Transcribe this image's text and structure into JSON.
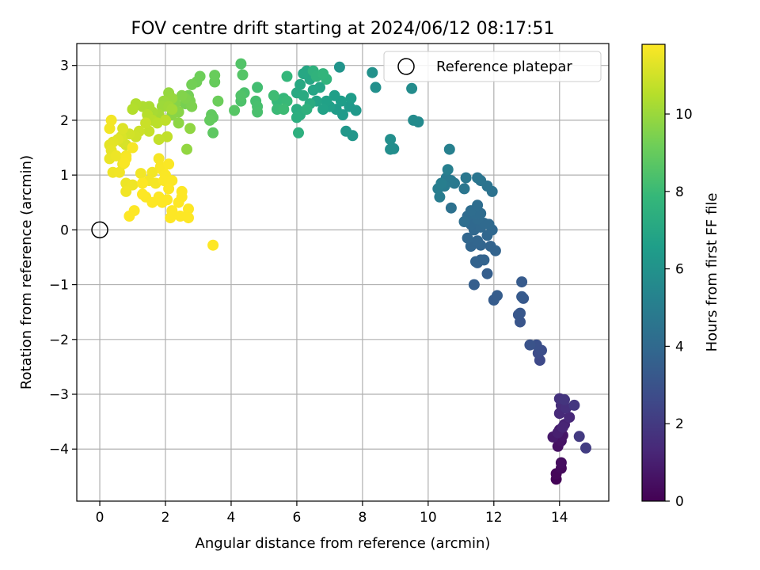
{
  "chart_data": {
    "type": "scatter",
    "title": "FOV centre drift starting at 2024/06/12 08:17:51",
    "xlabel": "Angular distance from reference (arcmin)",
    "ylabel": "Rotation from reference (arcmin)",
    "xlim": [
      -0.7,
      15.5
    ],
    "ylim": [
      -4.95,
      3.4
    ],
    "xticks": [
      0,
      2,
      4,
      6,
      8,
      10,
      12,
      14
    ],
    "yticks": [
      -4,
      -3,
      -2,
      -1,
      0,
      1,
      2,
      3
    ],
    "grid": true,
    "legend": {
      "position": "top-right",
      "entries": [
        "Reference platepar"
      ]
    },
    "reference_point": {
      "x": 0,
      "y": 0
    },
    "colorbar": {
      "label": "Hours from first FF file",
      "min": 0,
      "max": 11.8,
      "ticks": [
        0,
        2,
        4,
        6,
        8,
        10
      ],
      "colormap": [
        "#440154",
        "#482878",
        "#3e4a89",
        "#31688e",
        "#26828e",
        "#1f9e89",
        "#35b779",
        "#6ece58",
        "#b5de2b",
        "#fde725"
      ]
    },
    "series": [
      {
        "points": [
          [
            13.9,
            -4.55,
            0.1
          ],
          [
            13.9,
            -4.45,
            0.2
          ],
          [
            14.05,
            -4.35,
            0.3
          ],
          [
            14.05,
            -4.25,
            0.4
          ],
          [
            13.95,
            -3.95,
            0.5
          ],
          [
            14.05,
            -3.85,
            0.6
          ],
          [
            14.1,
            -3.75,
            0.7
          ],
          [
            13.8,
            -3.78,
            0.8
          ],
          [
            14.0,
            -3.65,
            0.9
          ],
          [
            13.95,
            -3.7,
            1.0
          ],
          [
            14.15,
            -3.55,
            1.1
          ],
          [
            14.1,
            -3.6,
            1.2
          ],
          [
            14.3,
            -3.42,
            1.3
          ],
          [
            14.0,
            -3.35,
            1.4
          ],
          [
            14.05,
            -3.2,
            1.5
          ],
          [
            14.2,
            -3.25,
            1.6
          ],
          [
            14.0,
            -3.08,
            1.7
          ],
          [
            14.15,
            -3.1,
            1.8
          ],
          [
            14.45,
            -3.2,
            1.9
          ],
          [
            14.6,
            -3.77,
            2.0
          ],
          [
            14.8,
            -3.98,
            2.1
          ],
          [
            13.4,
            -2.38,
            2.6
          ],
          [
            13.35,
            -2.25,
            2.7
          ],
          [
            13.45,
            -2.2,
            2.8
          ],
          [
            13.3,
            -2.1,
            2.9
          ],
          [
            13.1,
            -2.1,
            3.0
          ],
          [
            12.8,
            -1.68,
            3.1
          ],
          [
            12.75,
            -1.55,
            3.15
          ],
          [
            12.8,
            -1.52,
            3.2
          ],
          [
            12.9,
            -1.25,
            3.25
          ],
          [
            12.85,
            -1.22,
            3.3
          ],
          [
            12.85,
            -0.95,
            3.35
          ],
          [
            12.0,
            -1.28,
            3.4
          ],
          [
            12.1,
            -1.2,
            3.45
          ],
          [
            11.8,
            -0.8,
            3.5
          ],
          [
            11.4,
            -1.0,
            3.55
          ],
          [
            11.5,
            -0.6,
            3.6
          ],
          [
            11.6,
            -0.55,
            3.65
          ],
          [
            11.45,
            -0.58,
            3.7
          ],
          [
            11.7,
            -0.55,
            3.72
          ],
          [
            11.9,
            -0.3,
            3.75
          ],
          [
            12.05,
            -0.38,
            3.78
          ],
          [
            11.3,
            -0.3,
            3.8
          ],
          [
            11.6,
            -0.28,
            3.82
          ],
          [
            11.5,
            -0.2,
            3.85
          ],
          [
            11.2,
            -0.15,
            3.88
          ],
          [
            11.8,
            -0.1,
            3.9
          ],
          [
            11.95,
            0.0,
            3.92
          ],
          [
            11.4,
            0.0,
            3.95
          ],
          [
            11.6,
            0.05,
            3.98
          ],
          [
            11.3,
            0.1,
            4.0
          ],
          [
            11.7,
            0.12,
            4.02
          ],
          [
            11.85,
            0.1,
            4.05
          ],
          [
            11.5,
            0.2,
            4.08
          ],
          [
            11.2,
            0.25,
            4.1
          ],
          [
            11.4,
            0.3,
            4.12
          ],
          [
            11.6,
            0.3,
            4.15
          ],
          [
            11.3,
            0.35,
            4.18
          ],
          [
            11.5,
            0.45,
            4.2
          ],
          [
            11.1,
            0.15,
            4.22
          ],
          [
            10.7,
            0.4,
            4.4
          ],
          [
            11.95,
            0.7,
            4.45
          ],
          [
            11.8,
            0.8,
            4.5
          ],
          [
            11.6,
            0.9,
            4.55
          ],
          [
            11.5,
            0.95,
            4.6
          ],
          [
            11.1,
            0.75,
            4.65
          ],
          [
            11.15,
            0.95,
            4.7
          ],
          [
            10.8,
            0.85,
            4.75
          ],
          [
            10.7,
            0.9,
            4.8
          ],
          [
            10.55,
            0.95,
            4.85
          ],
          [
            10.5,
            0.8,
            4.9
          ],
          [
            10.35,
            0.6,
            4.95
          ],
          [
            10.3,
            0.75,
            5.0
          ],
          [
            10.4,
            0.85,
            5.05
          ],
          [
            10.6,
            1.1,
            5.1
          ],
          [
            10.65,
            1.47,
            5.15
          ],
          [
            9.7,
            1.97,
            5.6
          ],
          [
            9.55,
            2.0,
            5.65
          ],
          [
            9.5,
            2.58,
            5.7
          ],
          [
            8.95,
            1.48,
            5.75
          ],
          [
            8.85,
            1.47,
            5.8
          ],
          [
            8.85,
            1.65,
            5.85
          ],
          [
            8.4,
            2.6,
            5.9
          ],
          [
            8.3,
            2.87,
            5.95
          ],
          [
            7.3,
            2.97,
            6.1
          ],
          [
            7.7,
            1.72,
            6.2
          ],
          [
            7.5,
            1.8,
            6.25
          ],
          [
            7.8,
            2.18,
            6.3
          ],
          [
            7.6,
            2.25,
            6.35
          ],
          [
            7.4,
            2.1,
            6.4
          ],
          [
            7.2,
            2.2,
            6.45
          ],
          [
            7.65,
            2.4,
            6.5
          ],
          [
            7.35,
            2.35,
            6.55
          ],
          [
            7.15,
            2.45,
            6.6
          ],
          [
            7.0,
            2.25,
            6.65
          ],
          [
            6.9,
            2.35,
            6.7
          ],
          [
            6.8,
            2.2,
            6.75
          ],
          [
            6.6,
            2.35,
            6.8
          ],
          [
            6.7,
            2.6,
            6.85
          ],
          [
            6.5,
            2.55,
            6.9
          ],
          [
            6.4,
            2.75,
            6.95
          ],
          [
            6.3,
            2.9,
            7.0
          ],
          [
            6.2,
            2.85,
            7.05
          ],
          [
            6.1,
            2.65,
            7.1
          ],
          [
            6.0,
            2.5,
            7.15
          ],
          [
            6.2,
            2.45,
            7.2
          ],
          [
            6.4,
            2.3,
            7.25
          ],
          [
            6.0,
            2.2,
            7.3
          ],
          [
            6.1,
            2.1,
            7.35
          ],
          [
            6.0,
            2.05,
            7.4
          ],
          [
            6.05,
            1.77,
            7.45
          ],
          [
            6.3,
            2.2,
            7.5
          ],
          [
            6.5,
            2.9,
            7.55
          ],
          [
            6.6,
            2.8,
            7.6
          ],
          [
            6.9,
            2.75,
            7.65
          ],
          [
            6.8,
            2.85,
            7.7
          ],
          [
            5.7,
            2.8,
            7.8
          ],
          [
            5.6,
            2.4,
            7.85
          ],
          [
            5.4,
            2.35,
            7.9
          ],
          [
            5.7,
            2.35,
            7.95
          ],
          [
            5.4,
            2.2,
            8.0
          ],
          [
            5.6,
            2.2,
            8.05
          ],
          [
            5.3,
            2.45,
            8.1
          ],
          [
            4.8,
            2.6,
            8.2
          ],
          [
            4.75,
            2.35,
            8.25
          ],
          [
            4.8,
            2.25,
            8.3
          ],
          [
            4.8,
            2.15,
            8.35
          ],
          [
            4.4,
            2.5,
            8.4
          ],
          [
            4.3,
            2.35,
            8.45
          ],
          [
            4.3,
            2.45,
            8.5
          ],
          [
            4.3,
            3.03,
            8.55
          ],
          [
            4.35,
            2.83,
            8.6
          ],
          [
            4.1,
            2.18,
            8.65
          ],
          [
            3.45,
            1.77,
            8.8
          ],
          [
            3.45,
            2.05,
            8.85
          ],
          [
            3.4,
            2.1,
            8.9
          ],
          [
            3.35,
            2.0,
            8.95
          ],
          [
            3.5,
            2.7,
            9.0
          ],
          [
            3.5,
            2.82,
            9.05
          ],
          [
            3.6,
            2.35,
            9.1
          ],
          [
            3.05,
            2.8,
            9.15
          ],
          [
            2.95,
            2.7,
            9.2
          ],
          [
            2.8,
            2.65,
            9.25
          ],
          [
            2.7,
            2.45,
            9.3
          ],
          [
            2.6,
            2.3,
            9.35
          ],
          [
            2.75,
            2.35,
            9.4
          ],
          [
            2.8,
            2.25,
            9.45
          ],
          [
            2.6,
            2.4,
            9.5
          ],
          [
            2.5,
            2.45,
            9.55
          ],
          [
            2.3,
            2.3,
            9.6
          ],
          [
            2.4,
            2.15,
            9.65
          ],
          [
            2.2,
            2.1,
            9.7
          ],
          [
            2.4,
            1.95,
            9.75
          ],
          [
            2.75,
            1.85,
            9.8
          ],
          [
            2.65,
            1.47,
            9.85
          ],
          [
            2.1,
            2.5,
            9.9
          ],
          [
            2.2,
            2.4,
            9.95
          ],
          [
            1.95,
            2.35,
            10.0
          ],
          [
            1.9,
            2.25,
            10.05
          ],
          [
            2.1,
            2.25,
            10.1
          ],
          [
            2.2,
            2.2,
            10.15
          ],
          [
            1.8,
            2.1,
            10.2
          ],
          [
            1.6,
            2.15,
            10.25
          ],
          [
            1.5,
            2.25,
            10.3
          ],
          [
            1.3,
            2.25,
            10.35
          ],
          [
            1.1,
            2.3,
            10.4
          ],
          [
            1.0,
            2.2,
            10.45
          ],
          [
            1.45,
            2.1,
            10.5
          ],
          [
            1.6,
            2.0,
            10.55
          ],
          [
            1.75,
            1.95,
            10.6
          ],
          [
            2.0,
            2.0,
            10.65
          ],
          [
            2.05,
            1.7,
            10.7
          ],
          [
            1.8,
            1.65,
            10.75
          ],
          [
            1.5,
            1.8,
            10.8
          ],
          [
            1.4,
            1.95,
            10.85
          ],
          [
            1.2,
            1.8,
            10.9
          ],
          [
            1.1,
            1.7,
            10.95
          ],
          [
            0.9,
            1.75,
            11.0
          ],
          [
            0.8,
            1.55,
            11.05
          ],
          [
            0.7,
            1.6,
            11.1
          ],
          [
            0.65,
            1.7,
            11.15
          ],
          [
            0.7,
            1.85,
            11.2
          ],
          [
            0.55,
            1.65,
            11.25
          ],
          [
            0.4,
            1.6,
            11.3
          ],
          [
            0.3,
            1.55,
            11.35
          ],
          [
            0.35,
            1.45,
            11.4
          ],
          [
            0.3,
            1.3,
            11.45
          ],
          [
            0.5,
            1.35,
            11.5
          ],
          [
            0.7,
            1.2,
            11.52
          ],
          [
            0.4,
            1.05,
            11.55
          ],
          [
            0.6,
            1.05,
            11.58
          ],
          [
            0.3,
            1.85,
            11.6
          ],
          [
            0.35,
            2.0,
            11.62
          ],
          [
            0.8,
            1.35,
            11.65
          ],
          [
            1.0,
            1.5,
            11.68
          ],
          [
            0.8,
            1.3,
            11.7
          ],
          [
            0.75,
            1.22,
            11.72
          ],
          [
            0.8,
            0.85,
            11.5
          ],
          [
            1.0,
            0.82,
            11.55
          ],
          [
            0.8,
            0.7,
            11.58
          ],
          [
            1.25,
            1.03,
            11.6
          ],
          [
            1.6,
            1.05,
            11.62
          ],
          [
            1.5,
            0.9,
            11.64
          ],
          [
            1.7,
            0.85,
            11.66
          ],
          [
            1.8,
            1.3,
            11.68
          ],
          [
            1.85,
            1.15,
            11.7
          ],
          [
            1.9,
            1.1,
            11.72
          ],
          [
            2.1,
            1.2,
            11.74
          ],
          [
            2.0,
            1.0,
            11.75
          ],
          [
            1.95,
            0.9,
            11.76
          ],
          [
            2.2,
            0.9,
            11.77
          ],
          [
            1.3,
            0.85,
            11.78
          ],
          [
            1.4,
            0.6,
            11.79
          ],
          [
            1.3,
            0.65,
            11.8
          ],
          [
            1.6,
            0.5,
            11.8
          ],
          [
            1.05,
            0.35,
            11.8
          ],
          [
            0.9,
            0.25,
            11.8
          ],
          [
            2.1,
            0.75,
            11.8
          ],
          [
            1.8,
            0.6,
            11.8
          ],
          [
            1.9,
            0.5,
            11.8
          ],
          [
            2.05,
            0.55,
            11.8
          ],
          [
            2.2,
            0.35,
            11.8
          ],
          [
            2.4,
            0.5,
            11.8
          ],
          [
            2.5,
            0.6,
            11.8
          ],
          [
            2.5,
            0.7,
            11.8
          ],
          [
            2.7,
            0.38,
            11.8
          ],
          [
            2.7,
            0.22,
            11.8
          ],
          [
            2.45,
            0.25,
            11.8
          ],
          [
            2.15,
            0.22,
            11.8
          ],
          [
            3.45,
            -0.28,
            11.8
          ]
        ]
      }
    ]
  }
}
